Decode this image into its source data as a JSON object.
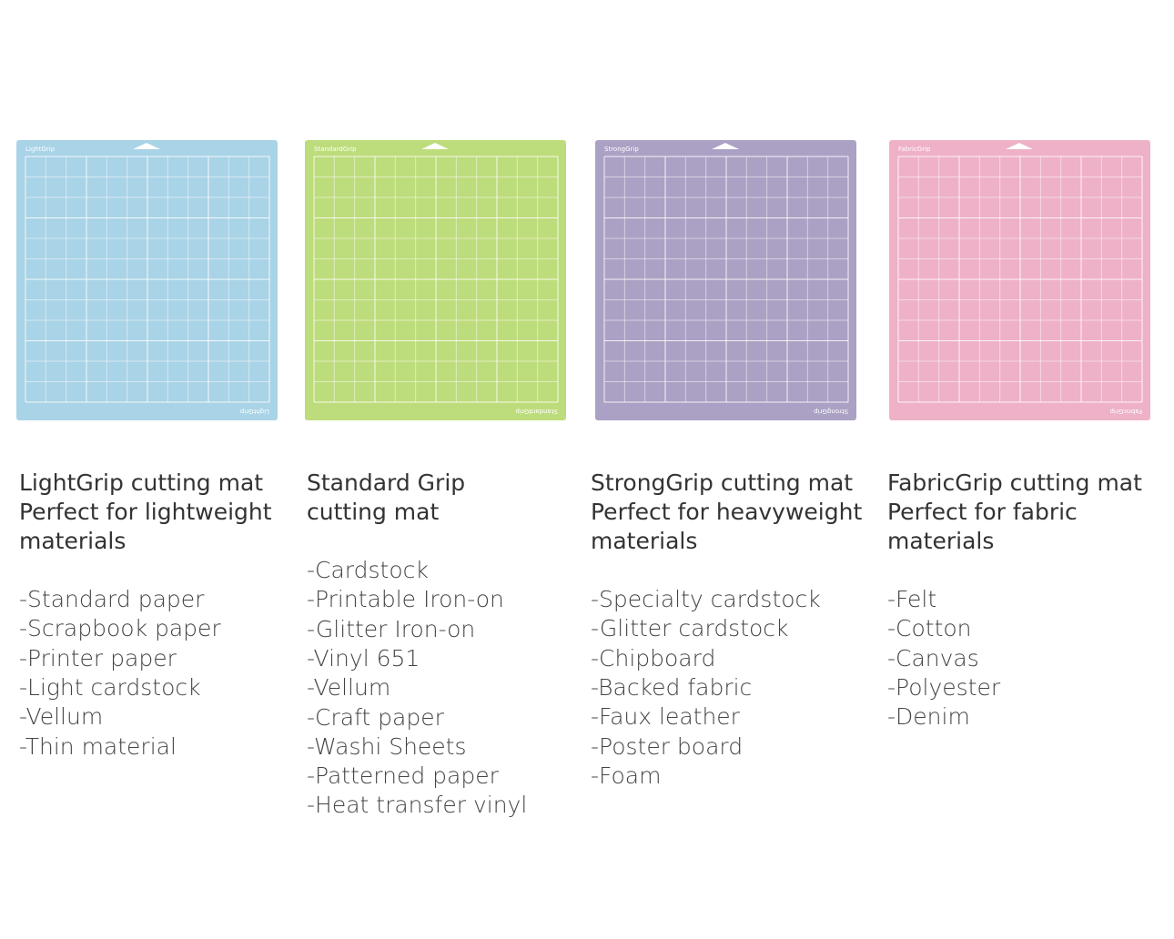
{
  "mats": [
    {
      "mat_label": "LightGrip",
      "color": "#a9d3e6",
      "title_lines": [
        "LightGrip cutting mat",
        "Perfect for lightweight",
        "materials"
      ],
      "items": [
        "-Standard paper",
        "-Scrapbook paper",
        "-Printer paper",
        "-Light cardstock",
        "-Vellum",
        "-Thin material"
      ]
    },
    {
      "mat_label": "StandardGrip",
      "color": "#bddc7b",
      "title_lines": [
        "Standard Grip",
        "cutting mat"
      ],
      "items": [
        "-Cardstock",
        "-Printable Iron-on",
        "-Glitter Iron-on",
        "-Vinyl 651",
        "-Vellum",
        "-Craft paper",
        "-Washi Sheets",
        "-Patterned paper",
        "-Heat transfer vinyl"
      ]
    },
    {
      "mat_label": "StrongGrip",
      "color": "#aba1c4",
      "title_lines": [
        "StrongGrip cutting mat",
        "Perfect for heavyweight",
        "materials"
      ],
      "items": [
        "-Specialty cardstock",
        "-Glitter cardstock",
        "-Chipboard",
        "-Backed fabric",
        "-Faux leather",
        "-Poster board",
        "-Foam"
      ]
    },
    {
      "mat_label": "FabricGrip",
      "color": "#eeb1c7",
      "title_lines": [
        "FabricGrip cutting mat",
        "Perfect for fabric",
        "materials"
      ],
      "items": [
        "-Felt",
        "-Cotton",
        "-Canvas",
        "-Polyester",
        "-Denim"
      ]
    }
  ]
}
